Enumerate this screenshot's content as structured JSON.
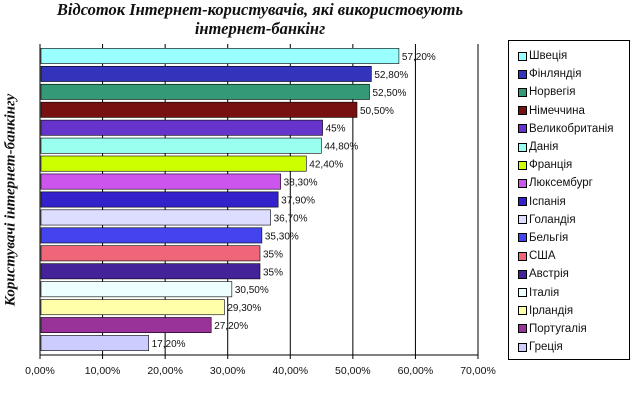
{
  "chart_data": {
    "type": "bar",
    "orientation": "horizontal",
    "title": "Відсоток Інтернет-користувачів, які використовують інтернет-банкінг",
    "title_lines": [
      "Відсоток Інтернет-користувачів, які використовують",
      "інтернет-банкінг"
    ],
    "xlabel": "",
    "ylabel": "Користувачі інтернет-банкінгу",
    "xlim": [
      0,
      70
    ],
    "x_ticks": [
      "0,00%",
      "10,00%",
      "20,00%",
      "30,00%",
      "40,00%",
      "50,00%",
      "60,00%",
      "70,00%"
    ],
    "grid": true,
    "legend_position": "right",
    "bars": [
      {
        "label": "Швеція",
        "value": 57.2,
        "value_label": "57,20%",
        "color": "#99ffff"
      },
      {
        "label": "Фінляндія",
        "value": 52.8,
        "value_label": "52,80%",
        "color": "#3333bb"
      },
      {
        "label": "Норвегія",
        "value": 52.5,
        "value_label": "52,50%",
        "color": "#339977"
      },
      {
        "label": "Німеччина",
        "value": 50.5,
        "value_label": "50,50%",
        "color": "#771111"
      },
      {
        "label": "Великобританія",
        "value": 45,
        "value_label": "45%",
        "color": "#6633cc"
      },
      {
        "label": "Данія",
        "value": 44.8,
        "value_label": "44,80%",
        "color": "#99ffee"
      },
      {
        "label": "Франція",
        "value": 42.4,
        "value_label": "42,40%",
        "color": "#ccff00"
      },
      {
        "label": "Люксембург",
        "value": 38.3,
        "value_label": "38,30%",
        "color": "#cc55ee"
      },
      {
        "label": "Іспанія",
        "value": 37.9,
        "value_label": "37,90%",
        "color": "#3322cc"
      },
      {
        "label": "Голандія",
        "value": 36.7,
        "value_label": "36,70%",
        "color": "#ddddff"
      },
      {
        "label": "Бельгія",
        "value": 35.3,
        "value_label": "35,30%",
        "color": "#4444ee"
      },
      {
        "label": "США",
        "value": 35,
        "value_label": "35%",
        "color": "#ee6677"
      },
      {
        "label": "Австрія",
        "value": 35,
        "value_label": "35%",
        "color": "#442299"
      },
      {
        "label": "Італія",
        "value": 30.5,
        "value_label": "30,50%",
        "color": "#eeffff"
      },
      {
        "label": "Ірландія",
        "value": 29.3,
        "value_label": "29,30%",
        "color": "#ffffaa"
      },
      {
        "label": "Португалія",
        "value": 27.2,
        "value_label": "27,20%",
        "color": "#993399"
      },
      {
        "label": "Греція",
        "value": 17.2,
        "value_label": "17,20%",
        "color": "#ccccff"
      }
    ]
  }
}
